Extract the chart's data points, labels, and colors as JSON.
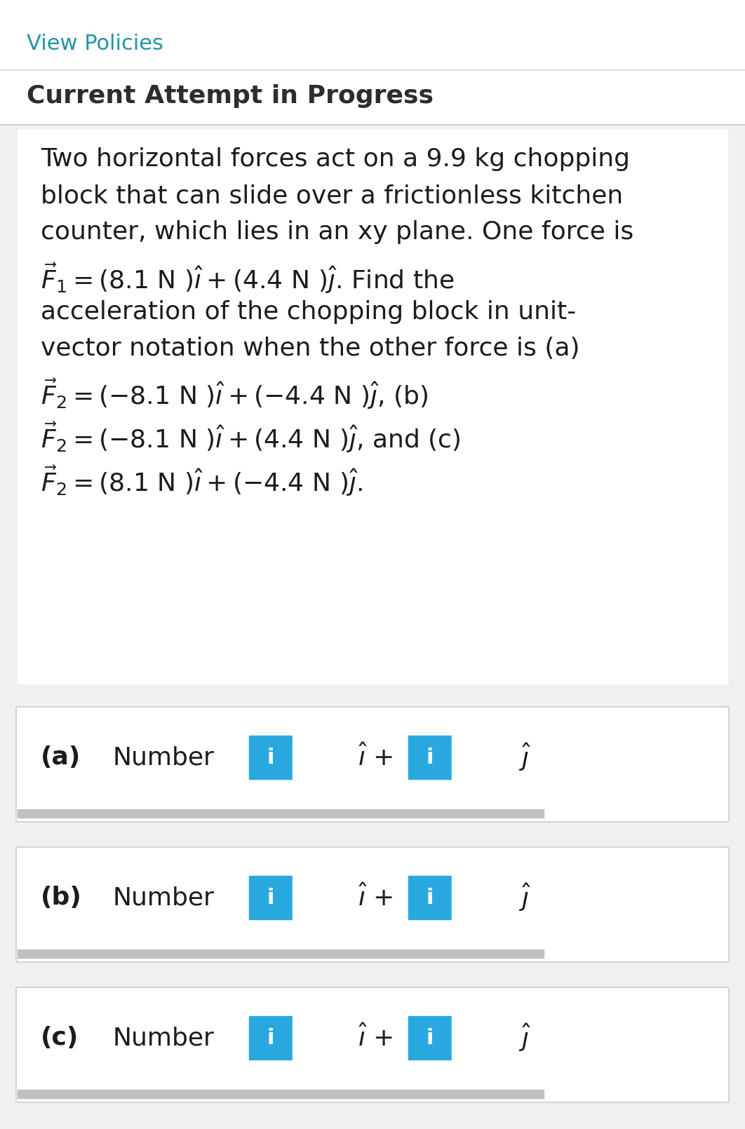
{
  "bg_color": "#ffffff",
  "outer_bg": "#f0f0f0",
  "link_color": "#2196A6",
  "header_color": "#2d2d2d",
  "text_color": "#1a1a2e",
  "body_text_color": "#1c1c1c",
  "blue_btn_color": "#29A8E0",
  "view_policies_text": "View Policies",
  "header_text": "Current Attempt in Progress",
  "problem_line1": "Two horizontal forces act on a 9.9 kg chopping",
  "problem_line2": "block that can slide over a frictionless kitchen",
  "problem_line3": "counter, which lies in an xy plane. One force is",
  "force_line": "F⃗1 = (8.1 N )î + (4.4 N )ĵ. Find the",
  "accel_line1": "acceleration of the chopping block in unit-",
  "accel_line2": "vector notation when the other force is (a)",
  "fa_line": "F⃗2 = ( − 8.1 N )î + ( − 4.4 N )ĵ, (b)",
  "fb_line": "F⃗2 = ( − 8.1 N )î + (4.4 N )ĵ, and (c)",
  "fc_line": "F⃗2 = (8.1 N )î + ( − 4.4 N )ĵ.",
  "row_labels": [
    "(a)",
    "(b)",
    "(c)"
  ],
  "number_label": "Number",
  "i_hat": "î",
  "j_hat": "ĵ",
  "plus_text": "+ ",
  "i_btn_text": "i",
  "border_color": "#cccccc",
  "scrollbar_color": "#c0c0c0",
  "inner_box_bg": "#ffffff"
}
